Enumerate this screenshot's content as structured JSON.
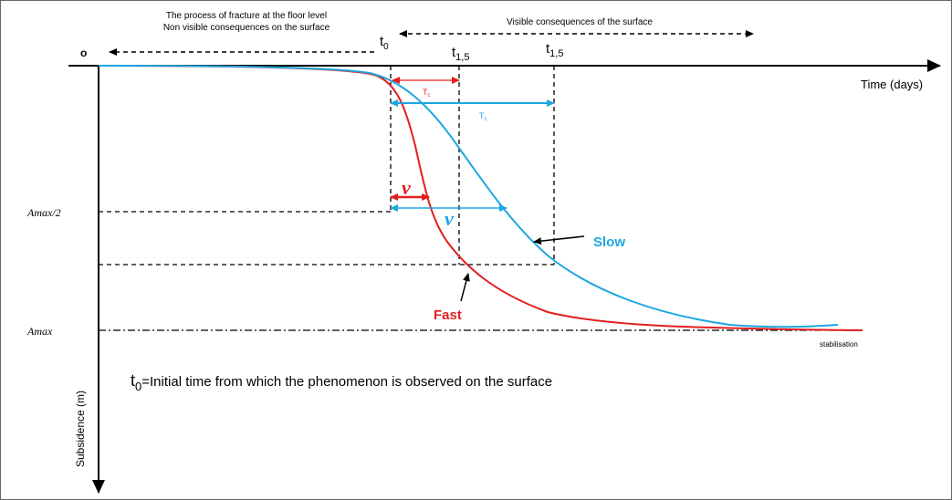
{
  "labels": {
    "process": "The process of fracture at the floor level",
    "non_visible": "Non visible consequences on the surface",
    "visible": "Visible consequences of the surface",
    "origin": "o",
    "t0": {
      "base": "t",
      "sub": "0"
    },
    "t15_fast": {
      "base": "t",
      "sub": "1,5"
    },
    "t15_slow": {
      "base": "t",
      "sub": "1,5"
    },
    "time_axis": "Time (days)",
    "tc_fast": {
      "base": "T",
      "sub": "c"
    },
    "tc_slow": {
      "base": "T",
      "sub": "c"
    },
    "v_fast": "ν",
    "v_slow": "ν",
    "amax_half": "Amax/2",
    "amax": "Amax",
    "slow": "Slow",
    "fast": "Fast",
    "stabilisation": "stabilisation",
    "note": {
      "base": "t",
      "sub": "0",
      "text": "=Initial time from which the phenomenon is observed on the surface"
    },
    "y_axis": "Subsidence (m)"
  }
}
